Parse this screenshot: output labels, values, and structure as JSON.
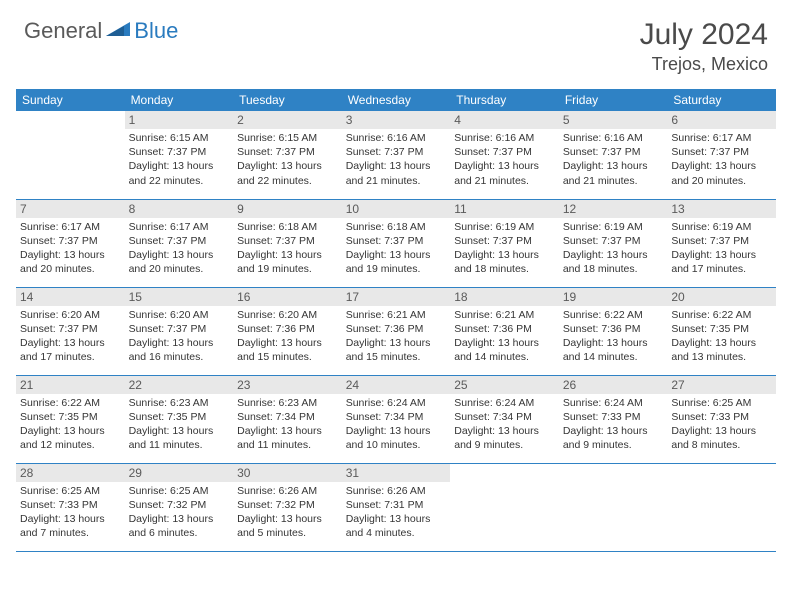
{
  "logo": {
    "text1": "General",
    "text2": "Blue"
  },
  "title": "July 2024",
  "location": "Trejos, Mexico",
  "colors": {
    "header_bg": "#2f82c5",
    "daynum_bg": "#e8e8e8",
    "text": "#353535",
    "divider": "#2f82c5"
  },
  "days_of_week": [
    "Sunday",
    "Monday",
    "Tuesday",
    "Wednesday",
    "Thursday",
    "Friday",
    "Saturday"
  ],
  "weeks": [
    [
      null,
      {
        "n": "1",
        "sr": "6:15 AM",
        "ss": "7:37 PM",
        "dl": "13 hours and 22 minutes."
      },
      {
        "n": "2",
        "sr": "6:15 AM",
        "ss": "7:37 PM",
        "dl": "13 hours and 22 minutes."
      },
      {
        "n": "3",
        "sr": "6:16 AM",
        "ss": "7:37 PM",
        "dl": "13 hours and 21 minutes."
      },
      {
        "n": "4",
        "sr": "6:16 AM",
        "ss": "7:37 PM",
        "dl": "13 hours and 21 minutes."
      },
      {
        "n": "5",
        "sr": "6:16 AM",
        "ss": "7:37 PM",
        "dl": "13 hours and 21 minutes."
      },
      {
        "n": "6",
        "sr": "6:17 AM",
        "ss": "7:37 PM",
        "dl": "13 hours and 20 minutes."
      }
    ],
    [
      {
        "n": "7",
        "sr": "6:17 AM",
        "ss": "7:37 PM",
        "dl": "13 hours and 20 minutes."
      },
      {
        "n": "8",
        "sr": "6:17 AM",
        "ss": "7:37 PM",
        "dl": "13 hours and 20 minutes."
      },
      {
        "n": "9",
        "sr": "6:18 AM",
        "ss": "7:37 PM",
        "dl": "13 hours and 19 minutes."
      },
      {
        "n": "10",
        "sr": "6:18 AM",
        "ss": "7:37 PM",
        "dl": "13 hours and 19 minutes."
      },
      {
        "n": "11",
        "sr": "6:19 AM",
        "ss": "7:37 PM",
        "dl": "13 hours and 18 minutes."
      },
      {
        "n": "12",
        "sr": "6:19 AM",
        "ss": "7:37 PM",
        "dl": "13 hours and 18 minutes."
      },
      {
        "n": "13",
        "sr": "6:19 AM",
        "ss": "7:37 PM",
        "dl": "13 hours and 17 minutes."
      }
    ],
    [
      {
        "n": "14",
        "sr": "6:20 AM",
        "ss": "7:37 PM",
        "dl": "13 hours and 17 minutes."
      },
      {
        "n": "15",
        "sr": "6:20 AM",
        "ss": "7:37 PM",
        "dl": "13 hours and 16 minutes."
      },
      {
        "n": "16",
        "sr": "6:20 AM",
        "ss": "7:36 PM",
        "dl": "13 hours and 15 minutes."
      },
      {
        "n": "17",
        "sr": "6:21 AM",
        "ss": "7:36 PM",
        "dl": "13 hours and 15 minutes."
      },
      {
        "n": "18",
        "sr": "6:21 AM",
        "ss": "7:36 PM",
        "dl": "13 hours and 14 minutes."
      },
      {
        "n": "19",
        "sr": "6:22 AM",
        "ss": "7:36 PM",
        "dl": "13 hours and 14 minutes."
      },
      {
        "n": "20",
        "sr": "6:22 AM",
        "ss": "7:35 PM",
        "dl": "13 hours and 13 minutes."
      }
    ],
    [
      {
        "n": "21",
        "sr": "6:22 AM",
        "ss": "7:35 PM",
        "dl": "13 hours and 12 minutes."
      },
      {
        "n": "22",
        "sr": "6:23 AM",
        "ss": "7:35 PM",
        "dl": "13 hours and 11 minutes."
      },
      {
        "n": "23",
        "sr": "6:23 AM",
        "ss": "7:34 PM",
        "dl": "13 hours and 11 minutes."
      },
      {
        "n": "24",
        "sr": "6:24 AM",
        "ss": "7:34 PM",
        "dl": "13 hours and 10 minutes."
      },
      {
        "n": "25",
        "sr": "6:24 AM",
        "ss": "7:34 PM",
        "dl": "13 hours and 9 minutes."
      },
      {
        "n": "26",
        "sr": "6:24 AM",
        "ss": "7:33 PM",
        "dl": "13 hours and 9 minutes."
      },
      {
        "n": "27",
        "sr": "6:25 AM",
        "ss": "7:33 PM",
        "dl": "13 hours and 8 minutes."
      }
    ],
    [
      {
        "n": "28",
        "sr": "6:25 AM",
        "ss": "7:33 PM",
        "dl": "13 hours and 7 minutes."
      },
      {
        "n": "29",
        "sr": "6:25 AM",
        "ss": "7:32 PM",
        "dl": "13 hours and 6 minutes."
      },
      {
        "n": "30",
        "sr": "6:26 AM",
        "ss": "7:32 PM",
        "dl": "13 hours and 5 minutes."
      },
      {
        "n": "31",
        "sr": "6:26 AM",
        "ss": "7:31 PM",
        "dl": "13 hours and 4 minutes."
      },
      null,
      null,
      null
    ]
  ],
  "labels": {
    "sunrise": "Sunrise:",
    "sunset": "Sunset:",
    "daylight": "Daylight:"
  }
}
